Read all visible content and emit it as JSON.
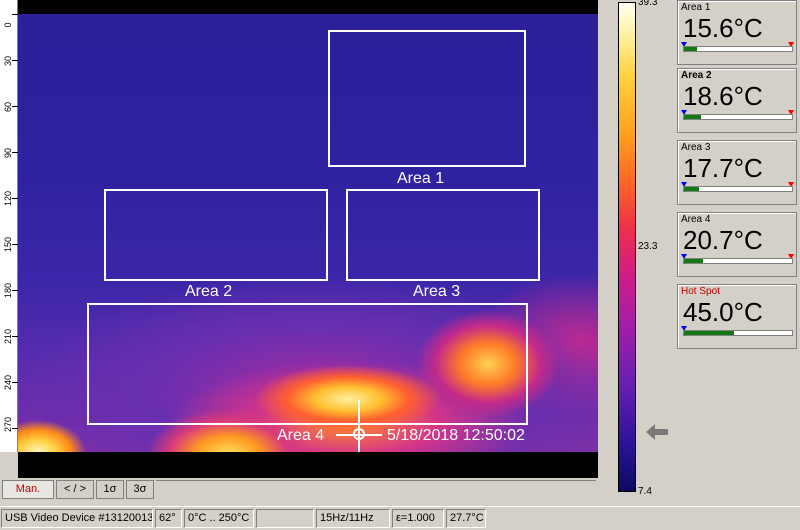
{
  "ruler": {
    "ticks": [
      "0",
      "30",
      "60",
      "90",
      "120",
      "150",
      "180",
      "210",
      "240",
      "270"
    ]
  },
  "image": {
    "areas": [
      {
        "label": "Area 1"
      },
      {
        "label": "Area 2"
      },
      {
        "label": "Area 3"
      },
      {
        "label": "Area 4"
      }
    ],
    "timestamp": "5/18/2018 12:50:02"
  },
  "scale": {
    "max": "39.3",
    "mid": "23.3",
    "min": "7.4"
  },
  "panels": [
    {
      "title": "Area 1",
      "value": "15.6°C",
      "level": 0.12
    },
    {
      "title": "Area 2",
      "value": "18.6°C",
      "level": 0.16
    },
    {
      "title": "Area 3",
      "value": "17.7°C",
      "level": 0.14
    },
    {
      "title": "Area 4",
      "value": "20.7°C",
      "level": 0.18
    },
    {
      "title": "Hot Spot",
      "value": "45.0°C",
      "level": 0.46
    }
  ],
  "tabs": [
    "Man.",
    "< / >",
    "1σ",
    "3σ"
  ],
  "status": {
    "device": "USB Video Device #13120013",
    "fov": "62°",
    "range": "0°C .. 250°C",
    "empty": "",
    "rate": "15Hz/11Hz",
    "emissivity": "ε=1.000",
    "ambient": "27.7°C"
  },
  "colors": {
    "hot_spot_title": "#c00000",
    "active_tab": "#c00000",
    "level_fill": "#107a10"
  }
}
